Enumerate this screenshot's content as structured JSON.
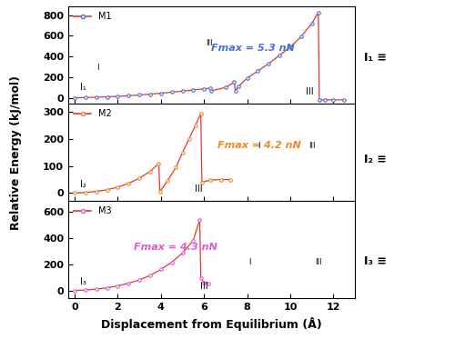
{
  "x_label": "Displacement from Equilibrium (Å)",
  "y_label": "Relative Energy (kJ/mol)",
  "chart_data": [
    {
      "type": "line",
      "series": [
        {
          "name": "M1",
          "color": "#4a6fd8",
          "marker": "o",
          "x": [
            0,
            0.5,
            1,
            1.5,
            2,
            2.5,
            3,
            3.5,
            4,
            4.5,
            5,
            5.5,
            6,
            6.3,
            6.35,
            7,
            7.4,
            7.45,
            7.6,
            8,
            8.5,
            9,
            9.5,
            10,
            10.5,
            11,
            11.3,
            11.35,
            11.6,
            12,
            12.5
          ],
          "values": [
            0,
            2,
            5,
            9,
            14,
            20,
            27,
            35,
            44,
            54,
            64,
            75,
            86,
            93,
            68,
            100,
            150,
            65,
            110,
            190,
            260,
            330,
            410,
            490,
            590,
            720,
            825,
            -20,
            -20,
            -20,
            -20
          ]
        }
      ],
      "xlim": [
        -0.3,
        13
      ],
      "xticks": [
        0,
        2,
        4,
        6,
        8,
        10,
        12
      ],
      "ylim": [
        -60,
        880
      ],
      "yticks": [
        0,
        200,
        400,
        600,
        800
      ],
      "tick_labels": "y",
      "legend": "upper left",
      "label_start": "I₁",
      "label_end": "III",
      "force_label": "Fmax = 5.3 nN",
      "inset_labels": [
        "I",
        "III"
      ],
      "structure_label": "I₁ ≡"
    },
    {
      "type": "line",
      "series": [
        {
          "name": "M2",
          "color": "#f08a24",
          "marker": "o",
          "x": [
            0,
            0.5,
            1,
            1.5,
            2,
            2.5,
            3,
            3.5,
            3.9,
            3.95,
            4.3,
            4.7,
            5,
            5.3,
            5.6,
            5.85,
            5.9,
            6.3,
            6.8,
            7.2
          ],
          "values": [
            0,
            2,
            6,
            12,
            22,
            36,
            55,
            80,
            110,
            5,
            45,
            95,
            150,
            200,
            250,
            295,
            40,
            48,
            50,
            50
          ]
        }
      ],
      "xlim": [
        -0.3,
        13
      ],
      "xticks": [
        0,
        2,
        4,
        6,
        8,
        10,
        12
      ],
      "ylim": [
        -30,
        330
      ],
      "yticks": [
        0,
        100,
        200,
        300
      ],
      "tick_labels": "y",
      "legend": "upper left",
      "label_start": "I₂",
      "label_end": "III",
      "force_label": "Fmax = 4.2 nN",
      "inset_labels": [
        "I",
        "III"
      ],
      "structure_label": "I₂ ≡"
    },
    {
      "type": "line",
      "series": [
        {
          "name": "M3",
          "color": "#e05ad8",
          "marker": "o",
          "x": [
            0,
            0.5,
            1,
            1.5,
            2,
            2.5,
            3,
            3.5,
            4,
            4.5,
            5,
            5.5,
            5.8,
            5.85,
            6.0,
            6.2
          ],
          "values": [
            0,
            3,
            10,
            20,
            35,
            55,
            80,
            115,
            160,
            215,
            285,
            380,
            540,
            95,
            60,
            55
          ]
        }
      ],
      "xlim": [
        -0.3,
        13
      ],
      "xticks": [
        0,
        2,
        4,
        6,
        8,
        10,
        12
      ],
      "ylim": [
        -60,
        680
      ],
      "yticks": [
        0,
        200,
        400,
        600
      ],
      "legend": "upper left",
      "label_start": "I₃",
      "label_end": "III",
      "force_label": "Fmax = 4.3 nN",
      "inset_labels": [
        "I",
        "III"
      ],
      "structure_label": "I₃ ≡"
    }
  ]
}
